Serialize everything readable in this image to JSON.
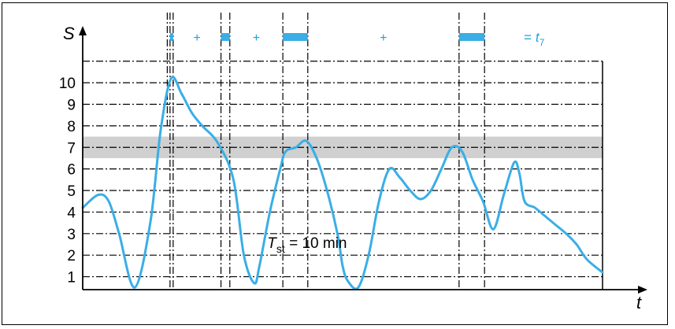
{
  "chart_data": {
    "type": "line",
    "ylabel": "S",
    "xlabel": "t",
    "y_ticks": [
      "1",
      "2",
      "3",
      "4",
      "5",
      "6",
      "7",
      "8",
      "9",
      "10"
    ],
    "ylim": [
      0.4,
      11.3
    ],
    "xlim": [
      0,
      100
    ],
    "threshold_band": {
      "from": 6.5,
      "to": 7.5,
      "color": "#d0d0d0"
    },
    "curve_color": "#3aaee6",
    "series": [
      {
        "x": [
          0,
          3,
          5,
          7,
          10,
          13,
          15,
          17,
          19,
          21,
          23,
          26,
          29,
          31,
          33,
          34,
          36,
          38,
          39,
          41,
          43,
          45,
          47,
          49,
          50,
          51,
          53,
          55,
          57,
          59,
          61,
          63,
          65,
          67,
          69,
          71,
          73,
          75,
          77,
          79,
          81,
          83,
          84,
          85,
          87,
          89,
          90,
          91,
          93,
          95,
          97,
          100
        ],
        "y": [
          4.2,
          4.8,
          4.5,
          3.0,
          0.5,
          3.5,
          7.8,
          10.2,
          9.5,
          8.6,
          8.0,
          7.2,
          5.5,
          2.0,
          0.7,
          1.5,
          4.0,
          6.0,
          6.8,
          7.0,
          7.3,
          6.5,
          5.0,
          3.0,
          1.5,
          0.8,
          0.5,
          2.0,
          4.5,
          6.0,
          5.6,
          5.0,
          4.6,
          5.0,
          6.0,
          7.0,
          6.8,
          5.5,
          4.5,
          3.2,
          4.8,
          6.3,
          5.8,
          4.5,
          4.2,
          3.8,
          3.6,
          3.4,
          3.0,
          2.5,
          1.8,
          1.2
        ]
      }
    ],
    "segments": [
      {
        "from": 16.8,
        "to": 17.4,
        "filled": true
      },
      {
        "from": 17.4,
        "to": 26.6,
        "filled": false,
        "label": "+"
      },
      {
        "from": 26.6,
        "to": 28.3,
        "filled": true
      },
      {
        "from": 28.3,
        "to": 38.5,
        "filled": false,
        "label": "+"
      },
      {
        "from": 38.5,
        "to": 43.3,
        "filled": true
      },
      {
        "from": 43.3,
        "to": 72.4,
        "filled": false,
        "label": "+"
      },
      {
        "from": 72.4,
        "to": 77.3,
        "filled": true
      },
      {
        "from": 77.3,
        "to": 100,
        "filled": false,
        "label": "= t",
        "subscript": "7"
      }
    ],
    "annotation": {
      "text": "T",
      "subscript": "st",
      "rest": " = 10 min",
      "x": 35.5,
      "y": 2.6
    }
  }
}
